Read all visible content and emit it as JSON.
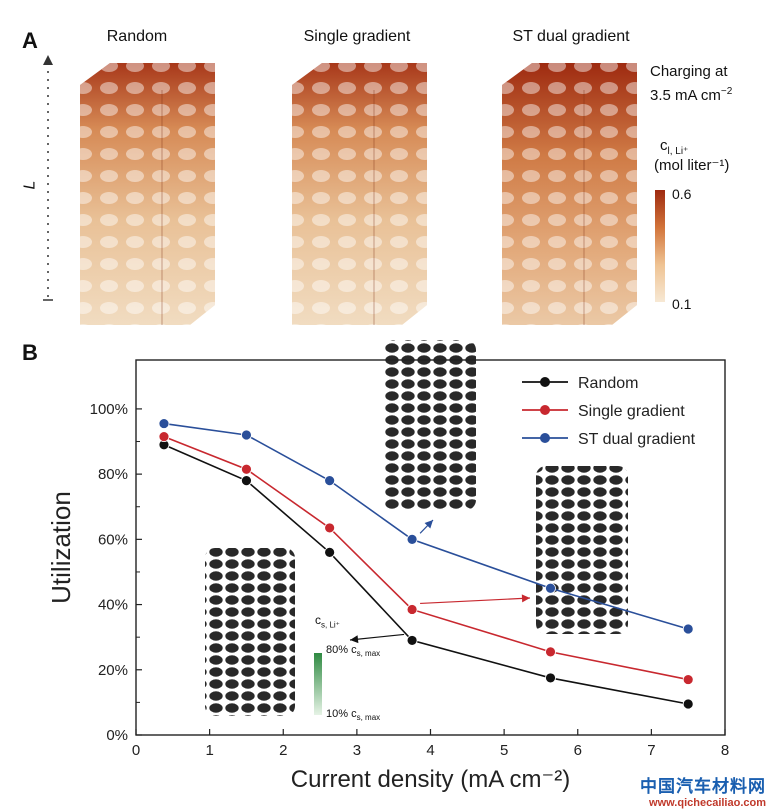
{
  "panel_a": {
    "letter": "A",
    "titles": [
      "Random",
      "Single gradient",
      "ST dual gradient"
    ],
    "axis_label": "L",
    "note_line1": "Charging at",
    "note_line2": "3.5 mA cm",
    "note_sup": "−2",
    "colorbar": {
      "label_var": "c",
      "label_sub": "l, Li⁺",
      "label_unit": "(mol liter⁻¹)",
      "max": "0.6",
      "min": "0.1",
      "colors": [
        "#9e2a10",
        "#d2743a",
        "#efc393",
        "#f7e8d4"
      ]
    }
  },
  "panel_b": {
    "letter": "B",
    "inset_labels": {
      "var": "c",
      "var_sub": "s, Li⁺",
      "top_pct": "80%",
      "top_var": "c",
      "top_sub": "s, max",
      "bottom_pct": "10%",
      "bottom_var": "c",
      "bottom_sub": "s, max"
    }
  },
  "chart_data": {
    "type": "line",
    "xlabel": "Current density (mA cm⁻²)",
    "ylabel": "Utilization",
    "xlim": [
      0,
      8
    ],
    "ylim": [
      0,
      1.15
    ],
    "xticks": [
      "0",
      "1",
      "2",
      "3",
      "4",
      "5",
      "6",
      "7",
      "8"
    ],
    "yticks": [
      "0%",
      "20%",
      "40%",
      "60%",
      "80%",
      "100%"
    ],
    "x": [
      0.38,
      1.5,
      2.63,
      3.75,
      5.63,
      7.5
    ],
    "series": [
      {
        "name": "Random",
        "color": "#111111",
        "values": [
          0.89,
          0.78,
          0.56,
          0.29,
          0.175,
          0.095
        ]
      },
      {
        "name": "Single gradient",
        "color": "#c8282f",
        "values": [
          0.915,
          0.815,
          0.635,
          0.385,
          0.255,
          0.17
        ]
      },
      {
        "name": "ST dual gradient",
        "color": "#2a4f9a",
        "values": [
          0.955,
          0.92,
          0.78,
          0.6,
          0.45,
          0.325
        ]
      }
    ],
    "legend_position": "top-right",
    "grid": false
  },
  "watermark": {
    "main": "中国汽车材料网",
    "url": "www.qichecailiao.com"
  }
}
